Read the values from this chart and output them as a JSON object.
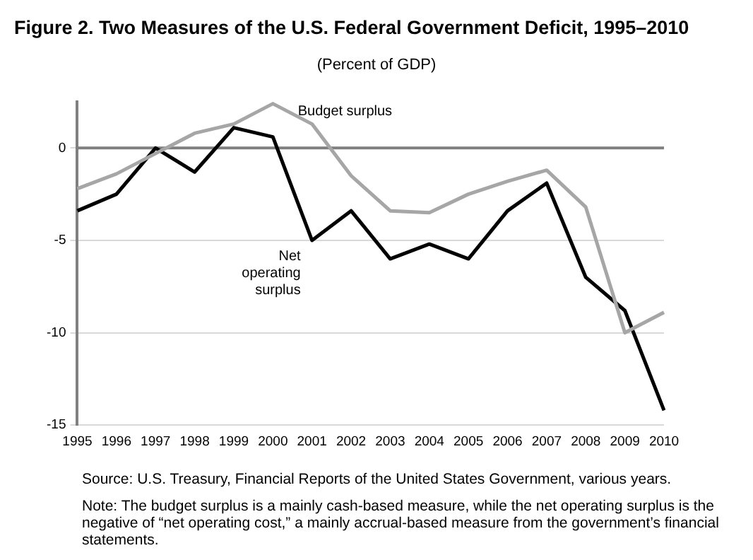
{
  "chart_data": {
    "type": "line",
    "title": "Figure 2. Two Measures of the U.S. Federal Government Deficit, 1995–2010",
    "subtitle": "(Percent of GDP)",
    "categories": [
      "1995",
      "1996",
      "1997",
      "1998",
      "1999",
      "2000",
      "2001",
      "2002",
      "2003",
      "2004",
      "2005",
      "2006",
      "2007",
      "2008",
      "2009",
      "2010"
    ],
    "series": [
      {
        "name": "Budget surplus",
        "color": "#a6a6a6",
        "values": [
          -2.2,
          -1.4,
          -0.3,
          0.8,
          1.3,
          2.4,
          1.3,
          -1.5,
          -3.4,
          -3.5,
          -2.5,
          -1.8,
          -1.2,
          -3.2,
          -10.0,
          -8.9
        ]
      },
      {
        "name": "Net operating surplus",
        "color": "#000000",
        "values": [
          -3.4,
          -2.5,
          0,
          -1.3,
          1.1,
          0.6,
          -5.0,
          -3.4,
          -6.0,
          -5.2,
          -6.0,
          -3.4,
          -1.9,
          -7.0,
          -8.8,
          -14.2
        ]
      }
    ],
    "ylim": [
      -15,
      2.5
    ],
    "yticks": [
      -15,
      -10,
      -5,
      0
    ],
    "grid": "y",
    "legend": false,
    "marker": "none",
    "line_style": "solid",
    "ref_lines": [
      {
        "axis": "y",
        "value": 0,
        "color": "#7f7f7f"
      }
    ],
    "annotations": [
      "Source: U.S. Treasury, Financial Reports of the United States Government, various years.",
      "Note: The budget surplus is a mainly cash-based measure, while the net operating surplus is the negative of “net operating cost,” a mainly accrual-based measure from the government’s financial statements."
    ]
  }
}
